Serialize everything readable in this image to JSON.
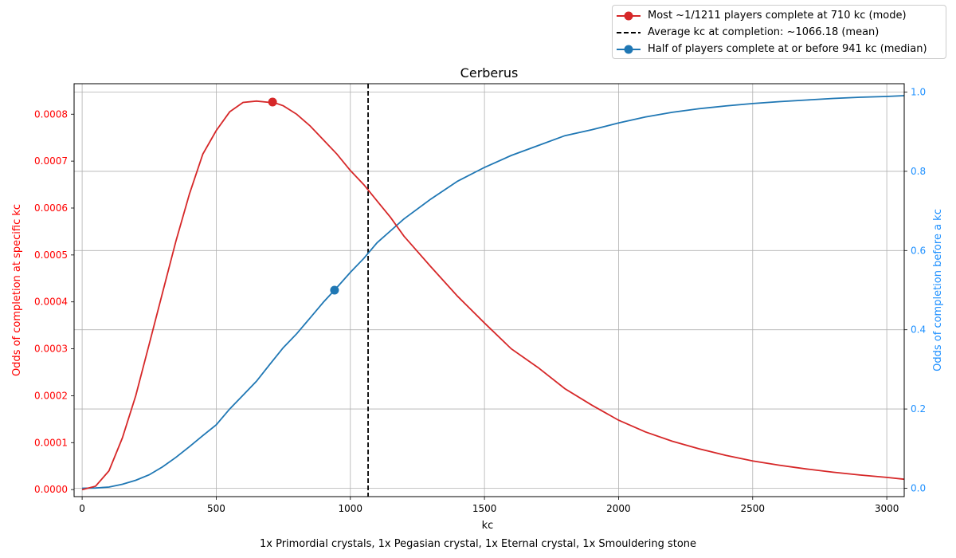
{
  "chart_data": {
    "type": "line",
    "title": "Cerberus",
    "xlabel": "kc",
    "ylabel_left": "Odds of completion at specific kc",
    "ylabel_right": "Odds of completion before a kc",
    "footer": "1x Primordial crystals, 1x Pegasian crystal, 1x Eternal crystal, 1x Smouldering stone",
    "xlim": [
      -30,
      3065
    ],
    "ylim_left": [
      -1.5e-05,
      0.000865
    ],
    "ylim_right": [
      -0.0212,
      1.0212
    ],
    "x_ticks": [
      "0",
      "500",
      "1000",
      "1500",
      "2000",
      "2500",
      "3000"
    ],
    "y_left_ticks": [
      "0.0000",
      "0.0001",
      "0.0002",
      "0.0003",
      "0.0004",
      "0.0005",
      "0.0006",
      "0.0007",
      "0.0008"
    ],
    "y_right_ticks": [
      "0.0",
      "0.2",
      "0.4",
      "0.6",
      "0.8",
      "1.0"
    ],
    "grid": true,
    "legend_position": "top-right",
    "colors": {
      "left_axis": "#ff0000",
      "right_axis": "#1e90ff",
      "pmf": "#d62728",
      "cdf": "#1f77b4",
      "mean": "#000000"
    },
    "series": [
      {
        "name": "Most ~1/1211 players complete at 710 kc (mode)",
        "axis": "left",
        "x": [
          0,
          50,
          100,
          150,
          200,
          250,
          300,
          350,
          400,
          450,
          500,
          550,
          600,
          650,
          700,
          710,
          750,
          800,
          850,
          900,
          950,
          1000,
          1050,
          1100,
          1150,
          1200,
          1300,
          1400,
          1500,
          1600,
          1700,
          1800,
          1900,
          2000,
          2100,
          2200,
          2300,
          2400,
          2500,
          2600,
          2700,
          2800,
          2900,
          3000,
          3065
        ],
        "y": [
          0,
          7e-06,
          4e-05,
          0.00011,
          0.0002,
          0.00031,
          0.00042,
          0.00053,
          0.00063,
          0.000715,
          0.000765,
          0.000805,
          0.000825,
          0.000828,
          0.000825,
          0.000826,
          0.000818,
          0.0008,
          0.000775,
          0.000745,
          0.000715,
          0.00068,
          0.00065,
          0.000615,
          0.00058,
          0.00054,
          0.000475,
          0.000412,
          0.000355,
          0.0003,
          0.00026,
          0.000215,
          0.00018,
          0.000148,
          0.000123,
          0.000103,
          8.7e-05,
          7.3e-05,
          6.1e-05,
          5.2e-05,
          4.4e-05,
          3.7e-05,
          3.1e-05,
          2.6e-05,
          2.2e-05
        ],
        "marker": {
          "x": 710,
          "y": 0.000826
        }
      },
      {
        "name": "Average kc at completion: ~1066.18 (mean)",
        "axis": "vertical",
        "x": 1066.18
      },
      {
        "name": "Half of players complete at or before 941 kc (median)",
        "axis": "right",
        "x": [
          0,
          50,
          100,
          150,
          200,
          250,
          300,
          350,
          400,
          450,
          500,
          550,
          600,
          650,
          700,
          750,
          800,
          850,
          900,
          941,
          1000,
          1050,
          1100,
          1150,
          1200,
          1300,
          1400,
          1500,
          1600,
          1700,
          1800,
          1900,
          2000,
          2100,
          2200,
          2300,
          2400,
          2500,
          2600,
          2700,
          2800,
          2900,
          3000,
          3065
        ],
        "y": [
          0,
          0.0005,
          0.003,
          0.01,
          0.02,
          0.034,
          0.054,
          0.078,
          0.105,
          0.133,
          0.16,
          0.2,
          0.235,
          0.27,
          0.313,
          0.355,
          0.39,
          0.43,
          0.47,
          0.5,
          0.545,
          0.58,
          0.62,
          0.65,
          0.68,
          0.73,
          0.775,
          0.81,
          0.84,
          0.865,
          0.89,
          0.905,
          0.922,
          0.937,
          0.949,
          0.958,
          0.965,
          0.971,
          0.976,
          0.98,
          0.984,
          0.987,
          0.989,
          0.991
        ],
        "marker": {
          "x": 941,
          "y": 0.5
        }
      }
    ]
  }
}
